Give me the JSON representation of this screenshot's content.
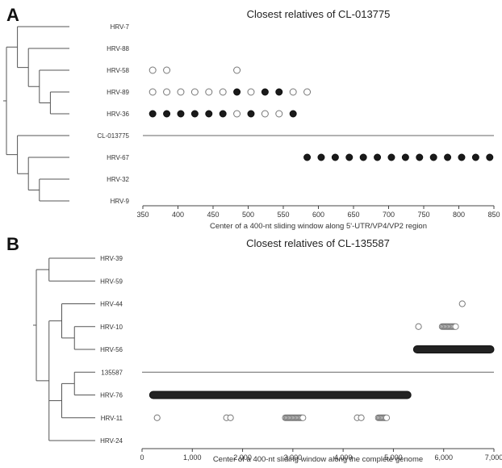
{
  "chart_data": [
    {
      "panel_label": "A",
      "type": "scatter",
      "title": "Closest relatives of CL-013775",
      "xlabel": "Center of a 400-nt sliding window along 5'-UTR/VP4/VP2 region",
      "xlim": [
        350,
        850
      ],
      "x_ticks": [
        "350",
        "400",
        "450",
        "500",
        "550",
        "600",
        "650",
        "700",
        "750",
        "800",
        "850"
      ],
      "y_categories": [
        "HRV-7",
        "HRV-88",
        "HRV-58",
        "HRV-89",
        "HRV-36",
        "CL-013775",
        "HRV-67",
        "HRV-32",
        "HRV-9"
      ],
      "query_row": "CL-013775",
      "series": [
        {
          "marker": "open",
          "points": [
            {
              "x": 364,
              "y": "HRV-58"
            },
            {
              "x": 384,
              "y": "HRV-58"
            },
            {
              "x": 484,
              "y": "HRV-58"
            },
            {
              "x": 364,
              "y": "HRV-89"
            },
            {
              "x": 384,
              "y": "HRV-89"
            },
            {
              "x": 404,
              "y": "HRV-89"
            },
            {
              "x": 424,
              "y": "HRV-89"
            },
            {
              "x": 444,
              "y": "HRV-89"
            },
            {
              "x": 464,
              "y": "HRV-89"
            },
            {
              "x": 504,
              "y": "HRV-89"
            },
            {
              "x": 564,
              "y": "HRV-89"
            },
            {
              "x": 584,
              "y": "HRV-89"
            },
            {
              "x": 484,
              "y": "HRV-36"
            },
            {
              "x": 524,
              "y": "HRV-36"
            },
            {
              "x": 544,
              "y": "HRV-36"
            }
          ]
        },
        {
          "marker": "filled",
          "points": [
            {
              "x": 484,
              "y": "HRV-89"
            },
            {
              "x": 524,
              "y": "HRV-89"
            },
            {
              "x": 544,
              "y": "HRV-89"
            },
            {
              "x": 364,
              "y": "HRV-36"
            },
            {
              "x": 384,
              "y": "HRV-36"
            },
            {
              "x": 404,
              "y": "HRV-36"
            },
            {
              "x": 424,
              "y": "HRV-36"
            },
            {
              "x": 444,
              "y": "HRV-36"
            },
            {
              "x": 464,
              "y": "HRV-36"
            },
            {
              "x": 504,
              "y": "HRV-36"
            },
            {
              "x": 564,
              "y": "HRV-36"
            },
            {
              "x": 584,
              "y": "HRV-67"
            },
            {
              "x": 604,
              "y": "HRV-67"
            },
            {
              "x": 624,
              "y": "HRV-67"
            },
            {
              "x": 644,
              "y": "HRV-67"
            },
            {
              "x": 664,
              "y": "HRV-67"
            },
            {
              "x": 684,
              "y": "HRV-67"
            },
            {
              "x": 704,
              "y": "HRV-67"
            },
            {
              "x": 724,
              "y": "HRV-67"
            },
            {
              "x": 744,
              "y": "HRV-67"
            },
            {
              "x": 764,
              "y": "HRV-67"
            },
            {
              "x": 784,
              "y": "HRV-67"
            },
            {
              "x": 804,
              "y": "HRV-67"
            },
            {
              "x": 824,
              "y": "HRV-67"
            },
            {
              "x": 844,
              "y": "HRV-67"
            }
          ]
        }
      ],
      "tree": {
        "children": [
          {
            "children": [
              {
                "leaf": "HRV-7"
              },
              {
                "children": [
                  {
                    "leaf": "HRV-88"
                  },
                  {
                    "children": [
                      {
                        "leaf": "HRV-58"
                      },
                      {
                        "children": [
                          {
                            "leaf": "HRV-89"
                          },
                          {
                            "leaf": "HRV-36"
                          }
                        ]
                      }
                    ]
                  }
                ]
              }
            ]
          },
          {
            "children": [
              {
                "leaf": "CL-013775"
              },
              {
                "children": [
                  {
                    "leaf": "HRV-67"
                  },
                  {
                    "children": [
                      {
                        "leaf": "HRV-32"
                      },
                      {
                        "leaf": "HRV-9"
                      }
                    ]
                  }
                ]
              }
            ]
          }
        ]
      }
    },
    {
      "panel_label": "B",
      "type": "scatter",
      "title": "Closest relatives of CL-135587",
      "xlabel": "Center of a 400-nt sliding window along the complete genome",
      "xlim": [
        0,
        7000
      ],
      "x_ticks": [
        "0",
        "1,000",
        "2,000",
        "3,000",
        "4,000",
        "5,000",
        "6,000",
        "7,000"
      ],
      "y_categories": [
        "HRV-39",
        "HRV-59",
        "HRV-44",
        "HRV-10",
        "HRV-56",
        "135587",
        "HRV-76",
        "HRV-11",
        "HRV-24"
      ],
      "query_row": "135587",
      "series": [
        {
          "marker": "filled",
          "ranges": [
            {
              "y": "HRV-76",
              "from": 150,
              "to": 5350
            },
            {
              "y": "HRV-56",
              "from": 5400,
              "to": 7000
            }
          ]
        },
        {
          "marker": "open",
          "points": [
            {
              "x": 6370,
              "y": "HRV-44"
            },
            {
              "x": 5500,
              "y": "HRV-10"
            },
            {
              "x": 300,
              "y": "HRV-11"
            },
            {
              "x": 1680,
              "y": "HRV-11"
            },
            {
              "x": 1760,
              "y": "HRV-11"
            },
            {
              "x": 4280,
              "y": "HRV-11"
            },
            {
              "x": 4360,
              "y": "HRV-11"
            }
          ],
          "clusters": [
            {
              "y": "HRV-10",
              "from": 5970,
              "to": 6240
            },
            {
              "y": "HRV-11",
              "from": 2850,
              "to": 3200
            },
            {
              "y": "HRV-11",
              "from": 4700,
              "to": 4880
            }
          ]
        }
      ],
      "tree": {
        "children": [
          {
            "children": [
              {
                "leaf": "HRV-39"
              },
              {
                "leaf": "HRV-59"
              }
            ]
          },
          {
            "children": [
              {
                "children": [
                  {
                    "leaf": "HRV-44"
                  },
                  {
                    "children": [
                      {
                        "leaf": "HRV-10"
                      },
                      {
                        "leaf": "HRV-56"
                      }
                    ]
                  }
                ]
              },
              {
                "children": [
                  {
                    "children": [
                      {
                        "leaf": "135587"
                      },
                      {
                        "leaf": "HRV-76"
                      }
                    ]
                  },
                  {
                    "leaf": "HRV-11"
                  }
                ]
              },
              {
                "leaf": "HRV-24"
              }
            ]
          }
        ]
      }
    }
  ]
}
